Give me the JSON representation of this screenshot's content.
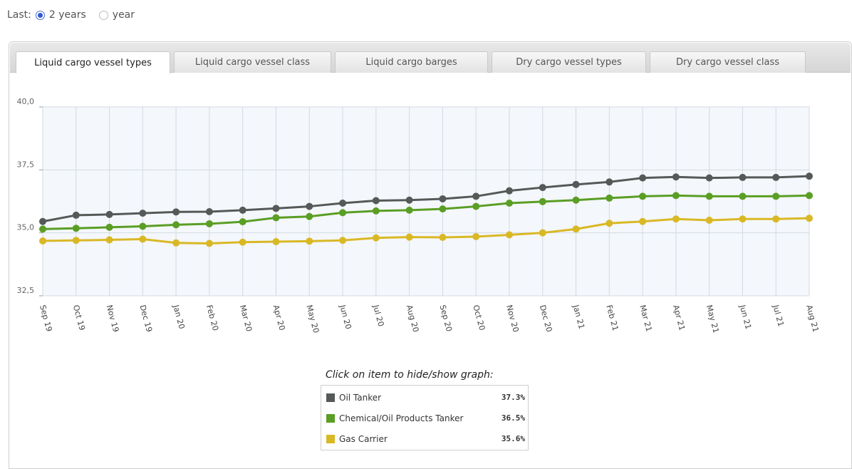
{
  "period": {
    "label": "Last:",
    "options": [
      {
        "label": "2 years",
        "selected": true
      },
      {
        "label": "year",
        "selected": false
      }
    ]
  },
  "tabs": [
    {
      "label": "Liquid cargo vessel types",
      "active": true
    },
    {
      "label": "Liquid cargo vessel class",
      "active": false
    },
    {
      "label": "Liquid cargo barges",
      "active": false
    },
    {
      "label": "Dry cargo vessel types",
      "active": false
    },
    {
      "label": "Dry cargo vessel class",
      "active": false
    }
  ],
  "chart_data": {
    "type": "line",
    "title": "",
    "xlabel": "",
    "ylabel": "",
    "ylim": [
      32.5,
      40.0
    ],
    "yticks": [
      "40,0",
      "37,5",
      "35,0",
      "32,5"
    ],
    "grid": true,
    "categories": [
      "Sep 19",
      "Oct 19",
      "Nov 19",
      "Dec 19",
      "Jan 20",
      "Feb 20",
      "Mar 20",
      "Apr 20",
      "May 20",
      "Jun 20",
      "Jul 20",
      "Aug 20",
      "Sep 20",
      "Oct 20",
      "Nov 20",
      "Dec 20",
      "Jan 21",
      "Feb 21",
      "Mar 21",
      "Apr 21",
      "May 21",
      "Jun 21",
      "Jul 21",
      "Aug 21"
    ],
    "series": [
      {
        "name": "Oil Tanker",
        "color": "#555a58",
        "values": [
          35.45,
          35.7,
          35.73,
          35.78,
          35.83,
          35.84,
          35.9,
          35.97,
          36.05,
          36.18,
          36.28,
          36.3,
          36.35,
          36.45,
          36.67,
          36.8,
          36.92,
          37.02,
          37.18,
          37.22,
          37.18,
          37.2,
          37.2,
          37.25
        ]
      },
      {
        "name": "Chemical/Oil Products Tanker",
        "color": "#5a9e25",
        "values": [
          35.15,
          35.18,
          35.22,
          35.26,
          35.32,
          35.36,
          35.44,
          35.6,
          35.65,
          35.8,
          35.87,
          35.9,
          35.95,
          36.05,
          36.18,
          36.24,
          36.3,
          36.38,
          36.45,
          36.48,
          36.45,
          36.45,
          36.45,
          36.48
        ]
      },
      {
        "name": "Gas Carrier",
        "color": "#d9b825",
        "values": [
          34.68,
          34.7,
          34.72,
          34.75,
          34.6,
          34.58,
          34.63,
          34.65,
          34.67,
          34.7,
          34.8,
          34.83,
          34.82,
          34.85,
          34.92,
          35.0,
          35.15,
          35.38,
          35.45,
          35.55,
          35.5,
          35.55,
          35.55,
          35.58
        ]
      }
    ],
    "legend": {
      "title": "Click on item to hide/show graph:",
      "placement": "bottom-center",
      "items": [
        {
          "label": "Oil Tanker",
          "value": "37.3%",
          "color": "#555a58"
        },
        {
          "label": "Chemical/Oil Products Tanker",
          "value": "36.5%",
          "color": "#5a9e25"
        },
        {
          "label": "Gas Carrier",
          "value": "35.6%",
          "color": "#d9b825"
        }
      ]
    }
  }
}
